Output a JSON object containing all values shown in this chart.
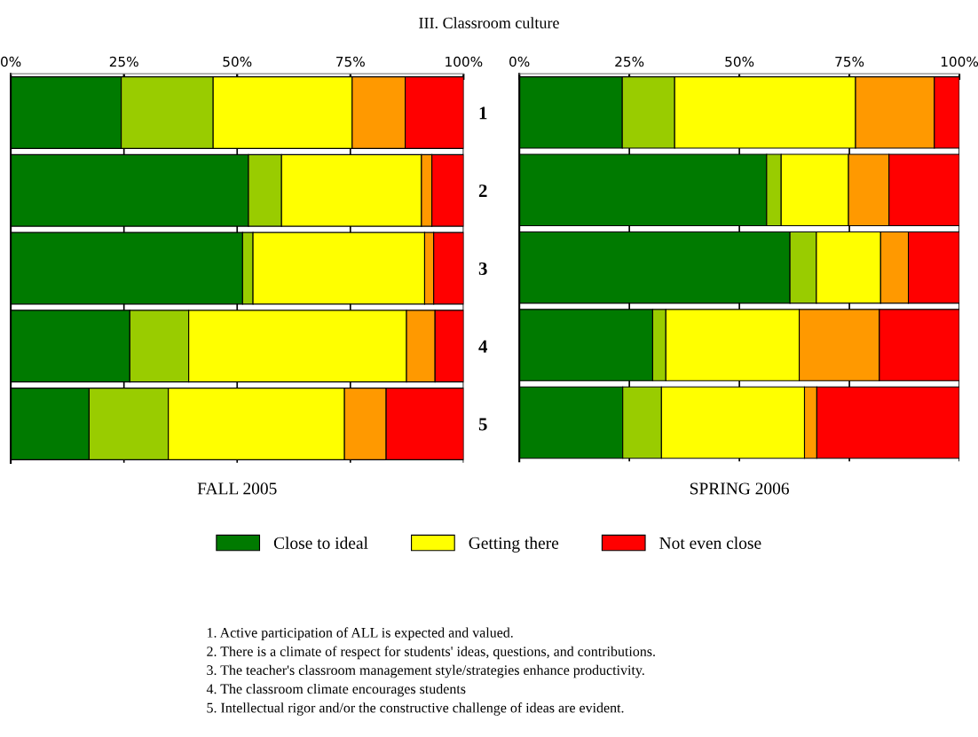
{
  "chart_data": [
    {
      "type": "bar",
      "orientation": "horizontal",
      "stacked": true,
      "title": "III. Classroom culture",
      "xlabel": "FALL 2005",
      "categories": [
        "1",
        "2",
        "3",
        "4",
        "5"
      ],
      "series": [
        {
          "name": "Close to ideal",
          "color": "#007a00",
          "values": [
            24.4,
            52.5,
            51.2,
            26.3,
            17.3
          ]
        },
        {
          "color": "#99cc00",
          "values": [
            20.3,
            7.3,
            2.3,
            13.0,
            17.5
          ]
        },
        {
          "name": "Getting there",
          "color": "#ffff00",
          "values": [
            30.7,
            30.9,
            37.9,
            48.1,
            38.9
          ]
        },
        {
          "color": "#ff9900",
          "values": [
            11.7,
            2.3,
            2.0,
            6.3,
            9.2
          ]
        },
        {
          "name": "Not even close",
          "color": "#ff0000",
          "values": [
            12.9,
            7.0,
            6.6,
            6.3,
            17.1
          ]
        }
      ],
      "xlim": [
        0,
        100
      ],
      "xticks": [
        {
          "value": 0,
          "label": "0%"
        },
        {
          "value": 25,
          "label": "25%"
        },
        {
          "value": 50,
          "label": "50%"
        },
        {
          "value": 75,
          "label": "75%"
        },
        {
          "value": 100,
          "label": "100%"
        }
      ],
      "grid": "x",
      "legend": "bottom",
      "annotations": [
        "1. Active participation of ALL is expected and valued.",
        "2. There is a climate of respect for students' ideas, questions, and contributions.",
        "3. The teacher's classroom management style/strategies enhance productivity.",
        "4. The classroom climate encourages students",
        "5. Intellectual rigor and/or the constructive challenge of ideas are evident."
      ]
    },
    {
      "type": "bar",
      "orientation": "horizontal",
      "stacked": true,
      "xlabel": "SPRING 2006",
      "categories": [
        "1",
        "2",
        "3",
        "4",
        "5"
      ],
      "series": [
        {
          "color": "#007a00",
          "values": [
            23.4,
            56.2,
            61.5,
            30.3,
            23.5
          ]
        },
        {
          "color": "#99cc00",
          "values": [
            11.9,
            3.3,
            6.0,
            3.0,
            8.8
          ]
        },
        {
          "color": "#ffff00",
          "values": [
            41.1,
            15.3,
            14.6,
            30.3,
            32.5
          ]
        },
        {
          "color": "#ff9900",
          "values": [
            17.9,
            9.2,
            6.3,
            18.2,
            2.8
          ]
        },
        {
          "color": "#ff0000",
          "values": [
            5.7,
            16.0,
            11.6,
            18.2,
            32.4
          ]
        }
      ],
      "xlim": [
        0,
        100
      ],
      "xticks": [
        {
          "value": 0,
          "label": "0%"
        },
        {
          "value": 25,
          "label": "25%"
        },
        {
          "value": 50,
          "label": "50%"
        },
        {
          "value": 75,
          "label": "75%"
        },
        {
          "value": 100,
          "label": "100%"
        }
      ],
      "grid": "x",
      "tick_labels": "x"
    }
  ]
}
